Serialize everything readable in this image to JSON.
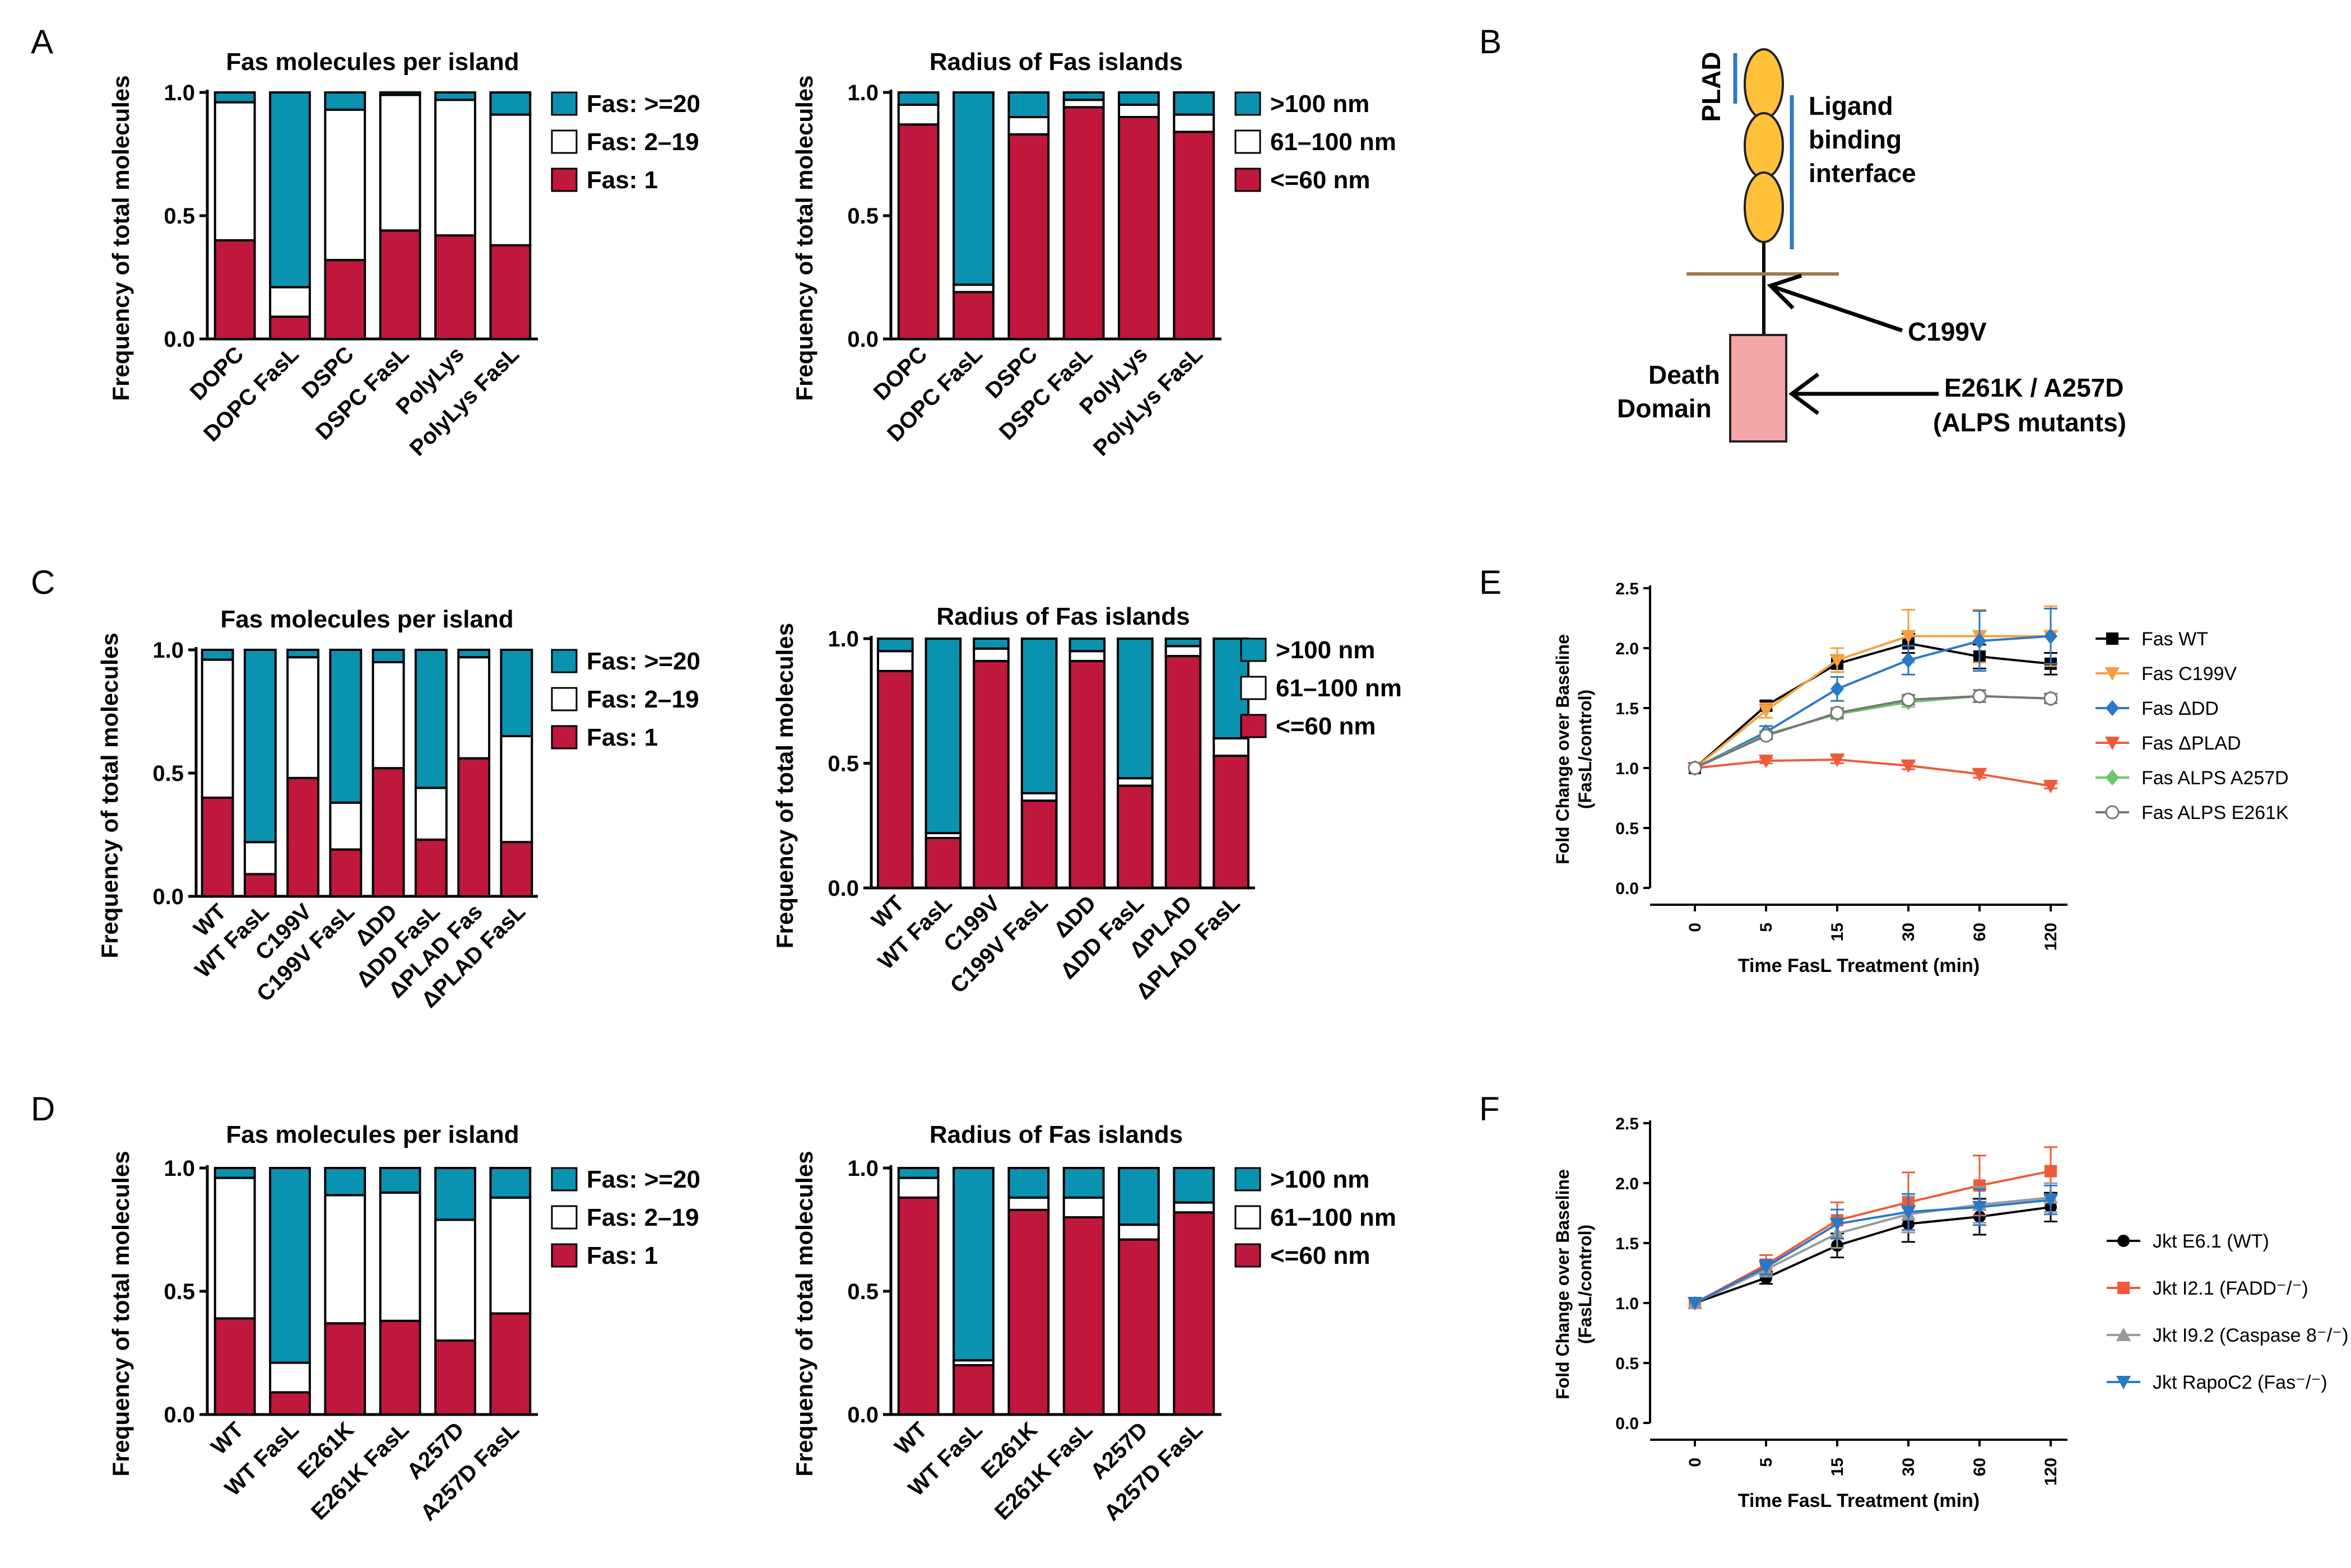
{
  "panel_labels": {
    "a": "A",
    "b": "B",
    "c": "C",
    "d": "D",
    "e": "E",
    "f": "F"
  },
  "colors": {
    "large": "#0a93b0",
    "mid": "#ffffff",
    "small": "#c0173d",
    "ecd": "#ffc03a",
    "death": "#f5a6a6",
    "line_blue": "#2a78c8",
    "tm_line": "#a07850"
  },
  "chart_data": [
    {
      "id": "A1",
      "type": "bar",
      "stacked": true,
      "title": "Fas molecules per island",
      "ylabel": "Frequency of total molecules",
      "ylim": [
        0,
        1
      ],
      "yticks": [
        "0.0",
        "0.5",
        "1.0"
      ],
      "categories": [
        "DOPC",
        "DOPC FasL",
        "DSPC",
        "DSPC FasL",
        "PolyLys",
        "PolyLys FasL"
      ],
      "series": [
        {
          "name": "Fas: 1",
          "color": "#c0173d",
          "values": [
            0.4,
            0.09,
            0.32,
            0.44,
            0.42,
            0.38
          ]
        },
        {
          "name": "Fas: 2–19",
          "color": "#ffffff",
          "values": [
            0.56,
            0.12,
            0.61,
            0.55,
            0.55,
            0.53
          ]
        },
        {
          "name": "Fas: >=20",
          "color": "#0a93b0",
          "values": [
            0.04,
            0.79,
            0.07,
            0.01,
            0.03,
            0.09
          ]
        }
      ]
    },
    {
      "id": "A2",
      "type": "bar",
      "stacked": true,
      "title": "Radius of Fas islands",
      "ylabel": "Frequency of total molecules",
      "ylim": [
        0,
        1
      ],
      "yticks": [
        "0.0",
        "0.5",
        "1.0"
      ],
      "categories": [
        "DOPC",
        "DOPC FasL",
        "DSPC",
        "DSPC FasL",
        "PolyLys",
        "PolyLys FasL"
      ],
      "series": [
        {
          "name": "<=60 nm",
          "color": "#c0173d",
          "values": [
            0.87,
            0.19,
            0.83,
            0.94,
            0.9,
            0.84
          ]
        },
        {
          "name": "61–100 nm",
          "color": "#ffffff",
          "values": [
            0.08,
            0.03,
            0.07,
            0.03,
            0.05,
            0.07
          ]
        },
        {
          "name": ">100 nm",
          "color": "#0a93b0",
          "values": [
            0.05,
            0.78,
            0.1,
            0.03,
            0.05,
            0.09
          ]
        }
      ]
    },
    {
      "id": "C1",
      "type": "bar",
      "stacked": true,
      "title": "Fas molecules per island",
      "ylabel": "Frequency of total molecules",
      "ylim": [
        0,
        1
      ],
      "yticks": [
        "0.0",
        "0.5",
        "1.0"
      ],
      "categories": [
        "WT",
        "WT FasL",
        "C199V",
        "C199V FasL",
        "ΔDD",
        "ΔDD FasL",
        "ΔPLAD Fas",
        "ΔPLAD FasL"
      ],
      "series": [
        {
          "name": "Fas: 1",
          "color": "#c0173d",
          "values": [
            0.4,
            0.09,
            0.48,
            0.19,
            0.52,
            0.23,
            0.56,
            0.22
          ]
        },
        {
          "name": "Fas: 2–19",
          "color": "#ffffff",
          "values": [
            0.56,
            0.13,
            0.49,
            0.19,
            0.43,
            0.21,
            0.41,
            0.43
          ]
        },
        {
          "name": "Fas: >=20",
          "color": "#0a93b0",
          "values": [
            0.04,
            0.78,
            0.03,
            0.62,
            0.05,
            0.56,
            0.03,
            0.35
          ]
        }
      ]
    },
    {
      "id": "C2",
      "type": "bar",
      "stacked": true,
      "title": "Radius of Fas islands",
      "ylabel": "Frequency of total molecules",
      "ylim": [
        0,
        1
      ],
      "yticks": [
        "0.0",
        "0.5",
        "1.0"
      ],
      "categories": [
        "WT",
        "WT FasL",
        "C199V",
        "C199V FasL",
        "ΔDD",
        "ΔDD FasL",
        "ΔPLAD",
        "ΔPLAD FasL"
      ],
      "series": [
        {
          "name": "<=60 nm",
          "color": "#c0173d",
          "values": [
            0.87,
            0.2,
            0.91,
            0.35,
            0.91,
            0.41,
            0.93,
            0.53
          ]
        },
        {
          "name": "61–100 nm",
          "color": "#ffffff",
          "values": [
            0.08,
            0.02,
            0.05,
            0.03,
            0.04,
            0.03,
            0.04,
            0.07
          ]
        },
        {
          "name": ">100 nm",
          "color": "#0a93b0",
          "values": [
            0.05,
            0.78,
            0.04,
            0.62,
            0.05,
            0.56,
            0.03,
            0.4
          ]
        }
      ]
    },
    {
      "id": "D1",
      "type": "bar",
      "stacked": true,
      "title": "Fas molecules per island",
      "ylabel": "Frequency of total molecules",
      "ylim": [
        0,
        1
      ],
      "yticks": [
        "0.0",
        "0.5",
        "1.0"
      ],
      "categories": [
        "WT",
        "WT FasL",
        "E261K",
        "E261K FasL",
        "A257D",
        "A257D FasL"
      ],
      "series": [
        {
          "name": "Fas: 1",
          "color": "#c0173d",
          "values": [
            0.39,
            0.09,
            0.37,
            0.38,
            0.3,
            0.41
          ]
        },
        {
          "name": "Fas: 2–19",
          "color": "#ffffff",
          "values": [
            0.57,
            0.12,
            0.52,
            0.52,
            0.49,
            0.47
          ]
        },
        {
          "name": "Fas: >=20",
          "color": "#0a93b0",
          "values": [
            0.04,
            0.79,
            0.11,
            0.1,
            0.21,
            0.12
          ]
        }
      ]
    },
    {
      "id": "D2",
      "type": "bar",
      "stacked": true,
      "title": "Radius of Fas islands",
      "ylabel": "Frequency of total molecules",
      "ylim": [
        0,
        1
      ],
      "yticks": [
        "0.0",
        "0.5",
        "1.0"
      ],
      "categories": [
        "WT",
        "WT FasL",
        "E261K",
        "E261K FasL",
        "A257D",
        "A257D FasL"
      ],
      "series": [
        {
          "name": "<=60 nm",
          "color": "#c0173d",
          "values": [
            0.88,
            0.2,
            0.83,
            0.8,
            0.71,
            0.82
          ]
        },
        {
          "name": "61–100 nm",
          "color": "#ffffff",
          "values": [
            0.08,
            0.02,
            0.05,
            0.08,
            0.06,
            0.04
          ]
        },
        {
          "name": ">100 nm",
          "color": "#0a93b0",
          "values": [
            0.04,
            0.78,
            0.12,
            0.12,
            0.23,
            0.14
          ]
        }
      ]
    },
    {
      "id": "E",
      "type": "line",
      "xlabel": "Time FasL Treatment (min)",
      "ylabel_lines": [
        "Fold Change over Baseline",
        "(FasL/control)"
      ],
      "ylim": [
        0,
        2.5
      ],
      "yticks": [
        "0.0",
        "0.5",
        "1.0",
        "1.5",
        "2.0",
        "2.5"
      ],
      "x": [
        "0",
        "5",
        "15",
        "30",
        "60",
        "120"
      ],
      "series": [
        {
          "name": "Fas WT",
          "color": "#000000",
          "marker": "square",
          "values": [
            1.0,
            1.52,
            1.87,
            2.04,
            1.93,
            1.87
          ],
          "err": [
            0,
            0.04,
            0.07,
            0.08,
            0.1,
            0.09
          ]
        },
        {
          "name": "Fas C199V",
          "color": "#f5a040",
          "marker": "tri-down",
          "values": [
            1.0,
            1.48,
            1.9,
            2.1,
            2.1,
            2.1
          ],
          "err": [
            0,
            0.06,
            0.1,
            0.22,
            0.22,
            0.25
          ]
        },
        {
          "name": "Fas ΔDD",
          "color": "#2a78c8",
          "marker": "diamond",
          "values": [
            1.0,
            1.3,
            1.66,
            1.9,
            2.06,
            2.1
          ],
          "err": [
            0,
            0.05,
            0.1,
            0.12,
            0.25,
            0.23
          ]
        },
        {
          "name": "Fas ΔPLAD",
          "color": "#f05a3a",
          "marker": "tri-down",
          "values": [
            1.0,
            1.06,
            1.07,
            1.02,
            0.95,
            0.85
          ],
          "err": [
            0,
            0.02,
            0.03,
            0.03,
            0.03,
            0.02
          ]
        },
        {
          "name": "Fas ALPS A257D",
          "color": "#6cc46c",
          "marker": "diamond",
          "values": [
            1.0,
            1.28,
            1.45,
            1.55,
            1.6,
            1.58
          ],
          "err": [
            0,
            0.03,
            0.04,
            0.04,
            0.05,
            0.04
          ]
        },
        {
          "name": "Fas ALPS E261K",
          "color": "#777777",
          "marker": "circle-open",
          "values": [
            1.0,
            1.27,
            1.46,
            1.57,
            1.6,
            1.58
          ],
          "err": [
            0,
            0.03,
            0.04,
            0.04,
            0.05,
            0.04
          ]
        }
      ]
    },
    {
      "id": "F",
      "type": "line",
      "xlabel": "Time FasL Treatment (min)",
      "ylabel_lines": [
        "Fold Change over Baseline",
        "(FasL/control)"
      ],
      "ylim": [
        0,
        2.5
      ],
      "yticks": [
        "0.0",
        "0.5",
        "1.0",
        "1.5",
        "2.0",
        "2.5"
      ],
      "x": [
        "0",
        "5",
        "15",
        "30",
        "60",
        "120"
      ],
      "series": [
        {
          "name": "Jkt E6.1 (WT)",
          "color": "#000000",
          "marker": "circle",
          "values": [
            1.0,
            1.21,
            1.48,
            1.66,
            1.72,
            1.8
          ],
          "err": [
            0,
            0.05,
            0.1,
            0.15,
            0.15,
            0.12
          ]
        },
        {
          "name": "Jkt I2.1 (FADD⁻/⁻)",
          "color": "#f05a3a",
          "marker": "square",
          "values": [
            1.0,
            1.32,
            1.69,
            1.84,
            1.98,
            2.1
          ],
          "err": [
            0,
            0.08,
            0.15,
            0.25,
            0.25,
            0.2
          ]
        },
        {
          "name": "Jkt I9.2 (Caspase 8⁻/⁻)",
          "color": "#999999",
          "marker": "tri-up",
          "values": [
            1.0,
            1.28,
            1.58,
            1.74,
            1.82,
            1.88
          ],
          "err": [
            0,
            0.06,
            0.12,
            0.15,
            0.15,
            0.12
          ]
        },
        {
          "name": "Jkt RapoC2 (Fas⁻/⁻)",
          "color": "#2a78c8",
          "marker": "tri-down",
          "values": [
            1.0,
            1.3,
            1.66,
            1.76,
            1.8,
            1.86
          ],
          "err": [
            0,
            0.06,
            0.12,
            0.15,
            0.15,
            0.12
          ]
        }
      ]
    }
  ],
  "diagram": {
    "plad": "PLAD",
    "ligand": [
      "Ligand",
      "binding",
      "interface"
    ],
    "c199v": "C199V",
    "death": [
      "Death",
      "Domain"
    ],
    "mutants": [
      "E261K / A257D",
      "(ALPS mutants)"
    ]
  }
}
